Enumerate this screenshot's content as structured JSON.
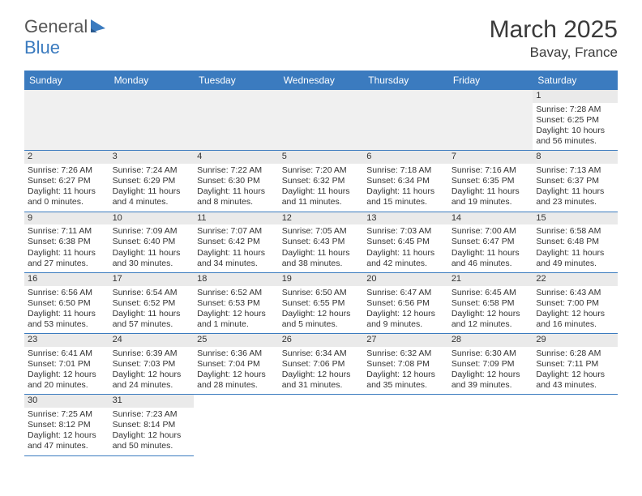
{
  "logo": {
    "text1": "General",
    "text2": "Blue"
  },
  "title": {
    "month": "March 2025",
    "location": "Bavay, France"
  },
  "colors": {
    "accent": "#3b7bbf",
    "headerText": "#ffffff",
    "dayStrip": "#eaeaea",
    "emptyFirst": "#f0f0f0",
    "text": "#333333"
  },
  "weekdays": [
    "Sunday",
    "Monday",
    "Tuesday",
    "Wednesday",
    "Thursday",
    "Friday",
    "Saturday"
  ],
  "weeks": [
    [
      null,
      null,
      null,
      null,
      null,
      null,
      {
        "n": "1",
        "sr": "Sunrise: 7:28 AM",
        "ss": "Sunset: 6:25 PM",
        "dl": "Daylight: 10 hours and 56 minutes."
      }
    ],
    [
      {
        "n": "2",
        "sr": "Sunrise: 7:26 AM",
        "ss": "Sunset: 6:27 PM",
        "dl": "Daylight: 11 hours and 0 minutes."
      },
      {
        "n": "3",
        "sr": "Sunrise: 7:24 AM",
        "ss": "Sunset: 6:29 PM",
        "dl": "Daylight: 11 hours and 4 minutes."
      },
      {
        "n": "4",
        "sr": "Sunrise: 7:22 AM",
        "ss": "Sunset: 6:30 PM",
        "dl": "Daylight: 11 hours and 8 minutes."
      },
      {
        "n": "5",
        "sr": "Sunrise: 7:20 AM",
        "ss": "Sunset: 6:32 PM",
        "dl": "Daylight: 11 hours and 11 minutes."
      },
      {
        "n": "6",
        "sr": "Sunrise: 7:18 AM",
        "ss": "Sunset: 6:34 PM",
        "dl": "Daylight: 11 hours and 15 minutes."
      },
      {
        "n": "7",
        "sr": "Sunrise: 7:16 AM",
        "ss": "Sunset: 6:35 PM",
        "dl": "Daylight: 11 hours and 19 minutes."
      },
      {
        "n": "8",
        "sr": "Sunrise: 7:13 AM",
        "ss": "Sunset: 6:37 PM",
        "dl": "Daylight: 11 hours and 23 minutes."
      }
    ],
    [
      {
        "n": "9",
        "sr": "Sunrise: 7:11 AM",
        "ss": "Sunset: 6:38 PM",
        "dl": "Daylight: 11 hours and 27 minutes."
      },
      {
        "n": "10",
        "sr": "Sunrise: 7:09 AM",
        "ss": "Sunset: 6:40 PM",
        "dl": "Daylight: 11 hours and 30 minutes."
      },
      {
        "n": "11",
        "sr": "Sunrise: 7:07 AM",
        "ss": "Sunset: 6:42 PM",
        "dl": "Daylight: 11 hours and 34 minutes."
      },
      {
        "n": "12",
        "sr": "Sunrise: 7:05 AM",
        "ss": "Sunset: 6:43 PM",
        "dl": "Daylight: 11 hours and 38 minutes."
      },
      {
        "n": "13",
        "sr": "Sunrise: 7:03 AM",
        "ss": "Sunset: 6:45 PM",
        "dl": "Daylight: 11 hours and 42 minutes."
      },
      {
        "n": "14",
        "sr": "Sunrise: 7:00 AM",
        "ss": "Sunset: 6:47 PM",
        "dl": "Daylight: 11 hours and 46 minutes."
      },
      {
        "n": "15",
        "sr": "Sunrise: 6:58 AM",
        "ss": "Sunset: 6:48 PM",
        "dl": "Daylight: 11 hours and 49 minutes."
      }
    ],
    [
      {
        "n": "16",
        "sr": "Sunrise: 6:56 AM",
        "ss": "Sunset: 6:50 PM",
        "dl": "Daylight: 11 hours and 53 minutes."
      },
      {
        "n": "17",
        "sr": "Sunrise: 6:54 AM",
        "ss": "Sunset: 6:52 PM",
        "dl": "Daylight: 11 hours and 57 minutes."
      },
      {
        "n": "18",
        "sr": "Sunrise: 6:52 AM",
        "ss": "Sunset: 6:53 PM",
        "dl": "Daylight: 12 hours and 1 minute."
      },
      {
        "n": "19",
        "sr": "Sunrise: 6:50 AM",
        "ss": "Sunset: 6:55 PM",
        "dl": "Daylight: 12 hours and 5 minutes."
      },
      {
        "n": "20",
        "sr": "Sunrise: 6:47 AM",
        "ss": "Sunset: 6:56 PM",
        "dl": "Daylight: 12 hours and 9 minutes."
      },
      {
        "n": "21",
        "sr": "Sunrise: 6:45 AM",
        "ss": "Sunset: 6:58 PM",
        "dl": "Daylight: 12 hours and 12 minutes."
      },
      {
        "n": "22",
        "sr": "Sunrise: 6:43 AM",
        "ss": "Sunset: 7:00 PM",
        "dl": "Daylight: 12 hours and 16 minutes."
      }
    ],
    [
      {
        "n": "23",
        "sr": "Sunrise: 6:41 AM",
        "ss": "Sunset: 7:01 PM",
        "dl": "Daylight: 12 hours and 20 minutes."
      },
      {
        "n": "24",
        "sr": "Sunrise: 6:39 AM",
        "ss": "Sunset: 7:03 PM",
        "dl": "Daylight: 12 hours and 24 minutes."
      },
      {
        "n": "25",
        "sr": "Sunrise: 6:36 AM",
        "ss": "Sunset: 7:04 PM",
        "dl": "Daylight: 12 hours and 28 minutes."
      },
      {
        "n": "26",
        "sr": "Sunrise: 6:34 AM",
        "ss": "Sunset: 7:06 PM",
        "dl": "Daylight: 12 hours and 31 minutes."
      },
      {
        "n": "27",
        "sr": "Sunrise: 6:32 AM",
        "ss": "Sunset: 7:08 PM",
        "dl": "Daylight: 12 hours and 35 minutes."
      },
      {
        "n": "28",
        "sr": "Sunrise: 6:30 AM",
        "ss": "Sunset: 7:09 PM",
        "dl": "Daylight: 12 hours and 39 minutes."
      },
      {
        "n": "29",
        "sr": "Sunrise: 6:28 AM",
        "ss": "Sunset: 7:11 PM",
        "dl": "Daylight: 12 hours and 43 minutes."
      }
    ],
    [
      {
        "n": "30",
        "sr": "Sunrise: 7:25 AM",
        "ss": "Sunset: 8:12 PM",
        "dl": "Daylight: 12 hours and 47 minutes."
      },
      {
        "n": "31",
        "sr": "Sunrise: 7:23 AM",
        "ss": "Sunset: 8:14 PM",
        "dl": "Daylight: 12 hours and 50 minutes."
      },
      null,
      null,
      null,
      null,
      null
    ]
  ]
}
